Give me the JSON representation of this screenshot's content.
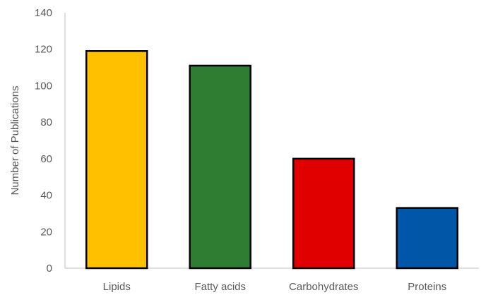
{
  "chart_data": {
    "type": "bar",
    "title": "",
    "xlabel": "",
    "ylabel": "Number of Publications",
    "categories": [
      "Lipids",
      "Fatty acids",
      "Carbohydrates",
      "Proteins"
    ],
    "values": [
      119,
      111,
      60,
      33
    ],
    "colors": [
      "#FFC000",
      "#2E7D32",
      "#E00000",
      "#0057A8"
    ],
    "ylim": [
      0,
      140
    ],
    "yticks": [
      "0",
      "20",
      "40",
      "60",
      "80",
      "100",
      "120",
      "140"
    ],
    "grid": false,
    "legend": "none"
  }
}
